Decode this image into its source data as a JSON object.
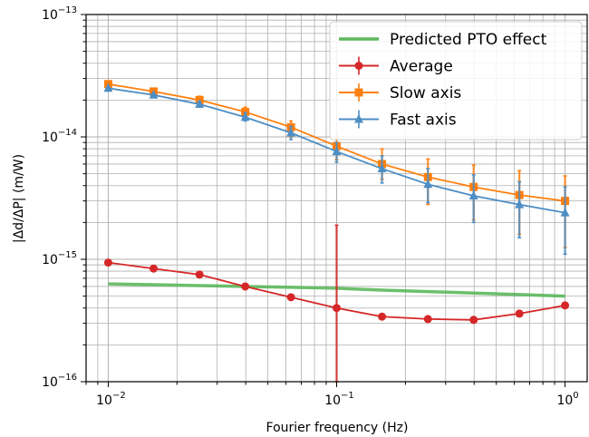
{
  "chart_data": {
    "type": "line",
    "xlabel": "Fourier frequency (Hz)",
    "ylabel": "|Δd/ΔP| (m/W)",
    "xscale": "log",
    "yscale": "log",
    "xlim": [
      0.008,
      1.25
    ],
    "ylim": [
      1e-16,
      1e-13
    ],
    "grid": true,
    "legend_position": "top-right",
    "x_ticks": [
      {
        "value": 0.01,
        "label": "10−2",
        "base": "10",
        "exp": "−2"
      },
      {
        "value": 0.1,
        "label": "10−1",
        "base": "10",
        "exp": "−1"
      },
      {
        "value": 1,
        "label": "100",
        "base": "10",
        "exp": "0"
      }
    ],
    "y_ticks": [
      {
        "value": 1e-16,
        "label": "10−16",
        "base": "10",
        "exp": "−16"
      },
      {
        "value": 1e-15,
        "label": "10−15",
        "base": "10",
        "exp": "−15"
      },
      {
        "value": 1e-14,
        "label": "10−14",
        "base": "10",
        "exp": "−14"
      },
      {
        "value": 1e-13,
        "label": "10−13",
        "base": "10",
        "exp": "−13"
      }
    ],
    "series": [
      {
        "name": "Predicted PTO effect",
        "color": "#5cb85c",
        "marker": "none",
        "x": [
          0.01,
          0.0158,
          0.0251,
          0.0398,
          0.0631,
          0.1,
          0.158,
          0.251,
          0.398,
          0.631,
          1.0
        ],
        "y": [
          6.3e-16,
          6.2e-16,
          6.1e-16,
          6e-16,
          5.9e-16,
          5.8e-16,
          5.6e-16,
          5.45e-16,
          5.3e-16,
          5.15e-16,
          5e-16
        ]
      },
      {
        "name": "Average",
        "color": "#d62728",
        "marker": "circle",
        "x": [
          0.01,
          0.0158,
          0.0251,
          0.0398,
          0.0631,
          0.1,
          0.158,
          0.251,
          0.398,
          0.631,
          1.0
        ],
        "y": [
          9.4e-16,
          8.4e-16,
          7.5e-16,
          6e-16,
          4.9e-16,
          4e-16,
          3.4e-16,
          3.25e-16,
          3.2e-16,
          3.6e-16,
          4.2e-16
        ],
        "err_low": [
          null,
          null,
          null,
          null,
          null,
          1e-16,
          null,
          null,
          null,
          null,
          null
        ],
        "err_high": [
          null,
          null,
          null,
          null,
          null,
          1.9e-15,
          null,
          null,
          null,
          null,
          null
        ]
      },
      {
        "name": "Slow axis",
        "color": "#ff7f0e",
        "marker": "square",
        "x": [
          0.01,
          0.0158,
          0.0251,
          0.0398,
          0.0631,
          0.1,
          0.158,
          0.251,
          0.398,
          0.631,
          1.0
        ],
        "y": [
          2.7e-14,
          2.35e-14,
          2e-14,
          1.6e-14,
          1.2e-14,
          8.4e-15,
          6e-15,
          4.7e-15,
          3.9e-15,
          3.35e-15,
          3e-15
        ],
        "err_low": [
          2.65e-14,
          2.3e-14,
          1.9e-14,
          1.45e-14,
          1e-14,
          6.5e-15,
          4.5e-15,
          2.8e-15,
          2.1e-15,
          1.6e-15,
          1.25e-15
        ],
        "err_high": [
          2.8e-14,
          2.45e-14,
          2.15e-14,
          1.75e-14,
          1.35e-14,
          1.02e-14,
          8e-15,
          6.6e-15,
          5.9e-15,
          5.3e-15,
          4.8e-15
        ]
      },
      {
        "name": "Fast axis",
        "color": "#4d8ec4",
        "marker": "triangle",
        "x": [
          0.01,
          0.0158,
          0.0251,
          0.0398,
          0.0631,
          0.1,
          0.158,
          0.251,
          0.398,
          0.631,
          1.0
        ],
        "y": [
          2.5e-14,
          2.2e-14,
          1.85e-14,
          1.45e-14,
          1.08e-14,
          7.6e-15,
          5.5e-15,
          4.1e-15,
          3.3e-15,
          2.8e-15,
          2.4e-15
        ],
        "err_low": [
          2.45e-14,
          2.15e-14,
          1.75e-14,
          1.35e-14,
          9.5e-15,
          6.2e-15,
          4.2e-15,
          2.9e-15,
          2e-15,
          1.5e-15,
          1.1e-15
        ],
        "err_high": [
          2.58e-14,
          2.28e-14,
          1.95e-14,
          1.58e-14,
          1.22e-14,
          9e-15,
          7e-15,
          5.5e-15,
          4.9e-15,
          4.3e-15,
          3.9e-15
        ]
      }
    ]
  }
}
